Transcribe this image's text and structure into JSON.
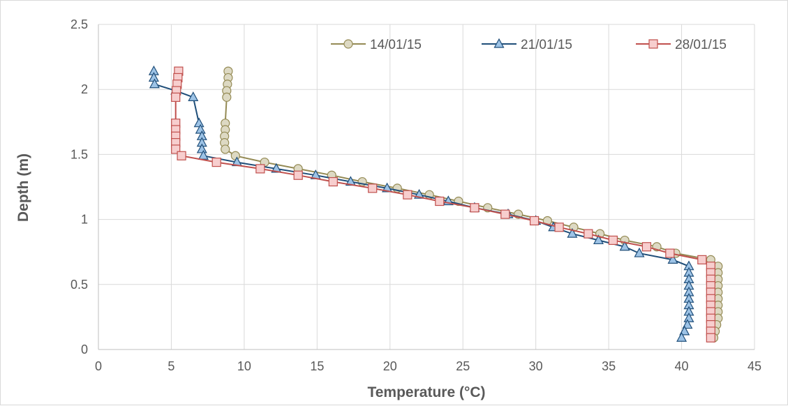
{
  "chart_data": {
    "type": "scatter",
    "title": "",
    "xlabel": "Temperature (°C)",
    "ylabel": "Depth (m)",
    "xlim": [
      0,
      45
    ],
    "ylim": [
      0,
      2.5
    ],
    "x_ticks": [
      "0",
      "5",
      "10",
      "15",
      "20",
      "25",
      "30",
      "35",
      "40",
      "45"
    ],
    "y_ticks": [
      "0",
      "0.5",
      "1",
      "1.5",
      "2",
      "2.5"
    ],
    "grid": true,
    "legend_position": "top",
    "series": [
      {
        "name": "14/01/15",
        "marker": "circle",
        "line_color": "#948A54",
        "marker_fill": "#DDD9C3",
        "marker_stroke": "#948A54",
        "points": [
          [
            8.9,
            2.14
          ],
          [
            8.9,
            2.09
          ],
          [
            8.85,
            2.04
          ],
          [
            8.8,
            1.99
          ],
          [
            8.8,
            1.94
          ],
          [
            8.7,
            1.74
          ],
          [
            8.7,
            1.69
          ],
          [
            8.65,
            1.64
          ],
          [
            8.65,
            1.59
          ],
          [
            8.7,
            1.54
          ],
          [
            9.4,
            1.49
          ],
          [
            11.4,
            1.44
          ],
          [
            13.7,
            1.39
          ],
          [
            16.0,
            1.34
          ],
          [
            18.1,
            1.29
          ],
          [
            20.5,
            1.24
          ],
          [
            22.7,
            1.19
          ],
          [
            24.7,
            1.14
          ],
          [
            26.7,
            1.09
          ],
          [
            28.8,
            1.04
          ],
          [
            30.8,
            0.99
          ],
          [
            32.6,
            0.94
          ],
          [
            34.4,
            0.89
          ],
          [
            36.1,
            0.84
          ],
          [
            38.3,
            0.79
          ],
          [
            39.6,
            0.74
          ],
          [
            42.0,
            0.69
          ],
          [
            42.5,
            0.64
          ],
          [
            42.5,
            0.59
          ],
          [
            42.5,
            0.54
          ],
          [
            42.5,
            0.49
          ],
          [
            42.5,
            0.44
          ],
          [
            42.5,
            0.39
          ],
          [
            42.5,
            0.34
          ],
          [
            42.5,
            0.29
          ],
          [
            42.5,
            0.24
          ],
          [
            42.4,
            0.19
          ],
          [
            42.3,
            0.14
          ],
          [
            42.2,
            0.09
          ]
        ]
      },
      {
        "name": "21/01/15",
        "marker": "triangle",
        "line_color": "#1F4E79",
        "marker_fill": "#9DC3E6",
        "marker_stroke": "#1F4E79",
        "points": [
          [
            3.8,
            2.14
          ],
          [
            3.8,
            2.09
          ],
          [
            3.85,
            2.04
          ],
          [
            5.3,
            1.99
          ],
          [
            6.5,
            1.94
          ],
          [
            6.9,
            1.74
          ],
          [
            7.0,
            1.69
          ],
          [
            7.1,
            1.64
          ],
          [
            7.1,
            1.59
          ],
          [
            7.1,
            1.54
          ],
          [
            7.2,
            1.49
          ],
          [
            9.5,
            1.44
          ],
          [
            12.2,
            1.39
          ],
          [
            14.9,
            1.34
          ],
          [
            17.3,
            1.29
          ],
          [
            19.8,
            1.24
          ],
          [
            22.0,
            1.19
          ],
          [
            24.0,
            1.14
          ],
          [
            25.8,
            1.09
          ],
          [
            28.1,
            1.04
          ],
          [
            30.0,
            0.99
          ],
          [
            31.2,
            0.94
          ],
          [
            32.5,
            0.89
          ],
          [
            34.3,
            0.84
          ],
          [
            36.1,
            0.79
          ],
          [
            37.1,
            0.74
          ],
          [
            39.4,
            0.69
          ],
          [
            40.5,
            0.64
          ],
          [
            40.5,
            0.59
          ],
          [
            40.5,
            0.54
          ],
          [
            40.5,
            0.49
          ],
          [
            40.5,
            0.44
          ],
          [
            40.5,
            0.39
          ],
          [
            40.5,
            0.34
          ],
          [
            40.5,
            0.29
          ],
          [
            40.5,
            0.24
          ],
          [
            40.4,
            0.19
          ],
          [
            40.2,
            0.14
          ],
          [
            40.0,
            0.09
          ]
        ]
      },
      {
        "name": "28/01/15",
        "marker": "square",
        "line_color": "#C0504D",
        "marker_fill": "#F7CECE",
        "marker_stroke": "#C0504D",
        "points": [
          [
            5.5,
            2.14
          ],
          [
            5.45,
            2.09
          ],
          [
            5.4,
            2.04
          ],
          [
            5.35,
            1.99
          ],
          [
            5.3,
            1.94
          ],
          [
            5.3,
            1.74
          ],
          [
            5.3,
            1.69
          ],
          [
            5.3,
            1.64
          ],
          [
            5.3,
            1.59
          ],
          [
            5.3,
            1.54
          ],
          [
            5.7,
            1.49
          ],
          [
            8.1,
            1.44
          ],
          [
            11.1,
            1.39
          ],
          [
            13.7,
            1.34
          ],
          [
            16.1,
            1.29
          ],
          [
            18.8,
            1.24
          ],
          [
            21.2,
            1.19
          ],
          [
            23.4,
            1.14
          ],
          [
            25.8,
            1.09
          ],
          [
            27.9,
            1.04
          ],
          [
            29.9,
            0.99
          ],
          [
            31.6,
            0.94
          ],
          [
            33.6,
            0.89
          ],
          [
            35.3,
            0.84
          ],
          [
            37.6,
            0.79
          ],
          [
            39.2,
            0.74
          ],
          [
            41.4,
            0.69
          ],
          [
            42.0,
            0.64
          ],
          [
            42.0,
            0.59
          ],
          [
            42.0,
            0.54
          ],
          [
            42.0,
            0.49
          ],
          [
            42.0,
            0.44
          ],
          [
            42.0,
            0.39
          ],
          [
            42.0,
            0.34
          ],
          [
            42.0,
            0.29
          ],
          [
            42.0,
            0.24
          ],
          [
            42.0,
            0.19
          ],
          [
            42.0,
            0.14
          ],
          [
            42.0,
            0.09
          ]
        ]
      }
    ]
  }
}
